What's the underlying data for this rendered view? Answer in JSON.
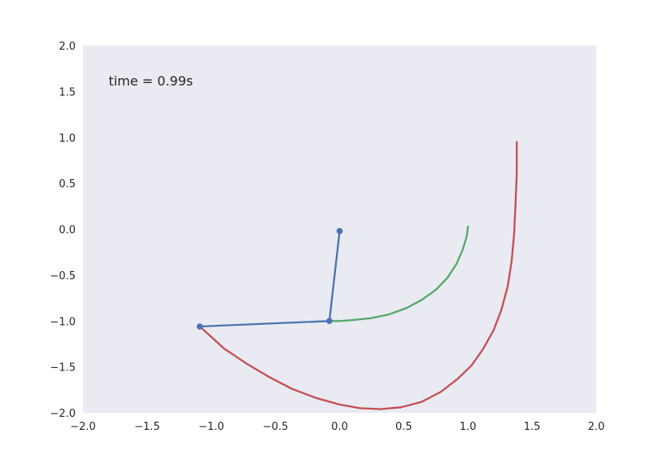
{
  "chart_data": {
    "type": "line",
    "title": "",
    "xlabel": "",
    "ylabel": "",
    "xlim": [
      -2.0,
      2.0
    ],
    "ylim": [
      -2.0,
      2.0
    ],
    "grid": false,
    "background": "#EAEAF2",
    "xticks": [
      "−2.0",
      "−1.5",
      "−1.0",
      "−0.5",
      "0.0",
      "0.5",
      "1.0",
      "1.5",
      "2.0"
    ],
    "yticks": [
      "−2.0",
      "−1.5",
      "−1.0",
      "−0.5",
      "0.0",
      "0.5",
      "1.0",
      "1.5",
      "2.0"
    ],
    "xtick_values": [
      -2.0,
      -1.5,
      -1.0,
      -0.5,
      0.0,
      0.5,
      1.0,
      1.5,
      2.0
    ],
    "ytick_values": [
      -2.0,
      -1.5,
      -1.0,
      -0.5,
      0.0,
      0.5,
      1.0,
      1.5,
      2.0
    ],
    "annotation": {
      "text": "time = 0.99s",
      "x": -1.8,
      "y": 1.62
    },
    "series": [
      {
        "color": "#4C72B0",
        "marker": "o",
        "x": [
          0.0,
          -0.08,
          -1.09
        ],
        "y": [
          -0.02,
          -1.0,
          -1.06
        ]
      },
      {
        "color": "#55A868",
        "x": [
          1.0,
          0.99,
          0.96,
          0.91,
          0.84,
          0.75,
          0.64,
          0.52,
          0.38,
          0.24,
          0.1,
          0.0,
          -0.08
        ],
        "y": [
          0.03,
          -0.08,
          -0.22,
          -0.38,
          -0.53,
          -0.66,
          -0.77,
          -0.86,
          -0.93,
          -0.97,
          -0.99,
          -1.0,
          -1.0
        ]
      },
      {
        "color": "#C44E52",
        "x": [
          1.38,
          1.38,
          1.37,
          1.36,
          1.34,
          1.31,
          1.26,
          1.2,
          1.12,
          1.03,
          0.92,
          0.79,
          0.64,
          0.48,
          0.32,
          0.16,
          0.0,
          -0.18,
          -0.37,
          -0.55,
          -0.73,
          -0.9,
          -1.09
        ],
        "y": [
          0.95,
          0.6,
          0.25,
          -0.05,
          -0.35,
          -0.62,
          -0.88,
          -1.1,
          -1.3,
          -1.48,
          -1.63,
          -1.77,
          -1.88,
          -1.94,
          -1.96,
          -1.95,
          -1.91,
          -1.84,
          -1.74,
          -1.61,
          -1.46,
          -1.3,
          -1.06
        ]
      }
    ]
  }
}
